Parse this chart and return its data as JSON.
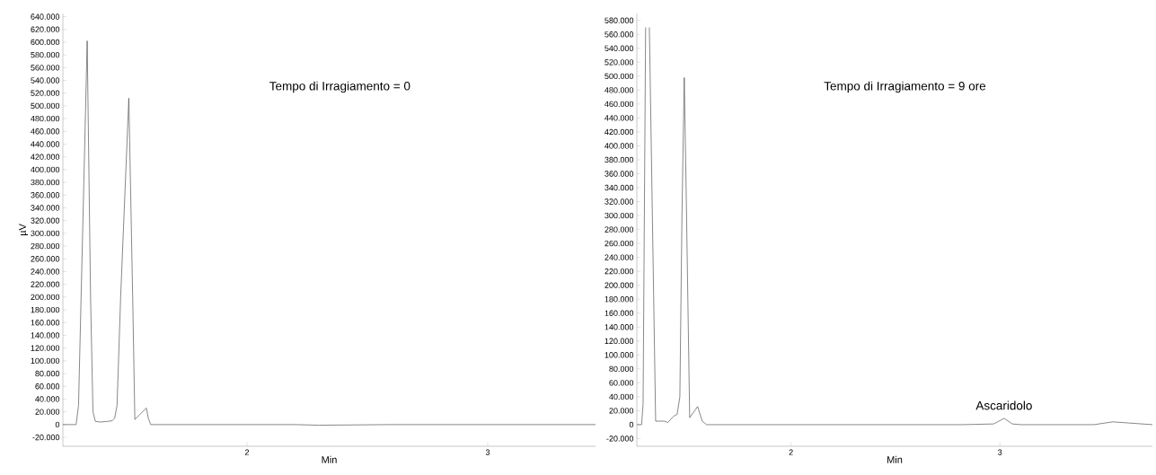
{
  "chart_data": [
    {
      "type": "line",
      "xlabel": "Min",
      "ylabel": "µV",
      "annotations": [
        "Tempo di Irragiamento = 0"
      ],
      "grid": false,
      "marker": "none",
      "line_style": "solid",
      "xlim": [
        1.235,
        3.448
      ],
      "ylim": [
        -34000,
        645000
      ],
      "xticks": [
        2,
        3
      ],
      "yticks": [
        {
          "value": -20000,
          "label": "-20.000"
        },
        0,
        {
          "value": 20000,
          "label": "20.000"
        },
        {
          "value": 40000,
          "label": "40.000"
        },
        {
          "value": 60000,
          "label": "60.000"
        },
        {
          "value": 80000,
          "label": "80.000"
        },
        {
          "value": 100000,
          "label": "100.000"
        },
        {
          "value": 120000,
          "label": "120.000"
        },
        {
          "value": 140000,
          "label": "140.000"
        },
        {
          "value": 160000,
          "label": "160.000"
        },
        {
          "value": 180000,
          "label": "180.000"
        },
        {
          "value": 200000,
          "label": "200.000"
        },
        {
          "value": 220000,
          "label": "220.000"
        },
        {
          "value": 240000,
          "label": "240.000"
        },
        {
          "value": 260000,
          "label": "260.000"
        },
        {
          "value": 280000,
          "label": "280.000"
        },
        {
          "value": 300000,
          "label": "300.000"
        },
        {
          "value": 320000,
          "label": "320.000"
        },
        {
          "value": 340000,
          "label": "340.000"
        },
        {
          "value": 360000,
          "label": "360.000"
        },
        {
          "value": 380000,
          "label": "380.000"
        },
        {
          "value": 400000,
          "label": "400.000"
        },
        {
          "value": 420000,
          "label": "420.000"
        },
        {
          "value": 440000,
          "label": "440.000"
        },
        {
          "value": 460000,
          "label": "460.000"
        },
        {
          "value": 480000,
          "label": "480.000"
        },
        {
          "value": 500000,
          "label": "500.000"
        },
        {
          "value": 520000,
          "label": "520.000"
        },
        {
          "value": 540000,
          "label": "540.000"
        },
        {
          "value": 560000,
          "label": "560.000"
        },
        {
          "value": 580000,
          "label": "580.000"
        },
        {
          "value": 600000,
          "label": "600.000"
        },
        {
          "value": 620000,
          "label": "620.000"
        },
        {
          "value": 640000,
          "label": "640.000"
        }
      ],
      "series": [
        {
          "color": "#555555",
          "x": [
            1.235,
            1.29,
            1.3,
            1.336,
            1.35,
            1.36,
            1.37,
            1.39,
            1.42,
            1.44,
            1.45,
            1.46,
            1.475,
            1.509,
            1.525,
            1.534,
            1.55,
            1.582,
            1.59,
            1.6,
            1.7,
            2.2,
            2.3,
            2.6,
            3.0,
            3.448
          ],
          "values": [
            0,
            0,
            30000,
            602000,
            200000,
            20000,
            5000,
            4000,
            5000,
            6000,
            10000,
            30000,
            200000,
            512000,
            200000,
            8000,
            14000,
            26000,
            10000,
            0,
            0,
            0,
            -1000,
            0,
            0,
            0
          ]
        }
      ]
    },
    {
      "type": "line",
      "xlabel": "Min",
      "annotations": [
        "Tempo di Irragiamento = 9 ore",
        {
          "text": "Ascaridolo",
          "x": 3.02,
          "y": 9000
        }
      ],
      "grid": false,
      "marker": "none",
      "line_style": "solid",
      "xlim": [
        1.262,
        3.73
      ],
      "ylim": [
        -31000,
        590000
      ],
      "xticks": [
        2,
        3
      ],
      "yticks": [
        {
          "value": -20000,
          "label": "-20.000"
        },
        0,
        {
          "value": 20000,
          "label": "20.000"
        },
        {
          "value": 40000,
          "label": "40.000"
        },
        {
          "value": 60000,
          "label": "60.000"
        },
        {
          "value": 80000,
          "label": "80.000"
        },
        {
          "value": 100000,
          "label": "100.000"
        },
        {
          "value": 120000,
          "label": "120.000"
        },
        {
          "value": 140000,
          "label": "140.000"
        },
        {
          "value": 160000,
          "label": "160.000"
        },
        {
          "value": 180000,
          "label": "180.000"
        },
        {
          "value": 200000,
          "label": "200.000"
        },
        {
          "value": 220000,
          "label": "220.000"
        },
        {
          "value": 240000,
          "label": "240.000"
        },
        {
          "value": 260000,
          "label": "260.000"
        },
        {
          "value": 280000,
          "label": "280.000"
        },
        {
          "value": 300000,
          "label": "300.000"
        },
        {
          "value": 320000,
          "label": "320.000"
        },
        {
          "value": 340000,
          "label": "340.000"
        },
        {
          "value": 360000,
          "label": "360.000"
        },
        {
          "value": 380000,
          "label": "380.000"
        },
        {
          "value": 400000,
          "label": "400.000"
        },
        {
          "value": 420000,
          "label": "420.000"
        },
        {
          "value": 440000,
          "label": "440.000"
        },
        {
          "value": 460000,
          "label": "460.000"
        },
        {
          "value": 480000,
          "label": "480.000"
        },
        {
          "value": 500000,
          "label": "500.000"
        },
        {
          "value": 520000,
          "label": "520.000"
        },
        {
          "value": 540000,
          "label": "540.000"
        },
        {
          "value": 560000,
          "label": "560.000"
        },
        {
          "value": 580000,
          "label": "580.000"
        }
      ],
      "series": [
        {
          "color": "#555555",
          "x": [
            1.262,
            1.285,
            1.292,
            1.304,
            1.313,
            1.322,
            1.352,
            1.395,
            1.41,
            1.438,
            1.455,
            1.468,
            1.478,
            1.489,
            1.5,
            1.515,
            1.553,
            1.575,
            1.596,
            2.82,
            2.97,
            3.02,
            3.06,
            3.1,
            3.45,
            3.54,
            3.73
          ],
          "values": [
            0,
            0,
            30000,
            570000,
            null,
            570000,
            5000,
            5000,
            3000,
            12000,
            15000,
            40000,
            300000,
            498000,
            300000,
            10000,
            26000,
            5000,
            0,
            0,
            1000,
            9000,
            1000,
            0,
            0,
            4000,
            0
          ]
        }
      ]
    }
  ]
}
